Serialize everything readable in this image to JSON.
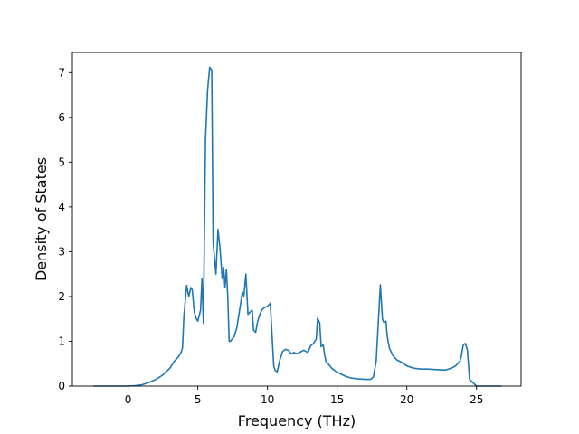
{
  "chart_data": {
    "type": "line",
    "title": "",
    "xlabel": "Frequency (THz)",
    "ylabel": "Density of States",
    "xlim": [
      -4.0,
      28.2
    ],
    "ylim": [
      0,
      7.45
    ],
    "xticks": [
      0,
      5,
      10,
      15,
      20,
      25
    ],
    "yticks": [
      0,
      1,
      2,
      3,
      4,
      5,
      6,
      7
    ],
    "grid": false,
    "legend": "none",
    "line_color": "#1f77b4",
    "series": [
      {
        "x": [
          -2.5,
          -1.0,
          0.0,
          0.5,
          1.0,
          1.5,
          2.0,
          2.5,
          3.0,
          3.3,
          3.6,
          3.8,
          3.9,
          4.0,
          4.2,
          4.35,
          4.5,
          4.6,
          4.75,
          4.9,
          5.0,
          5.2,
          5.3,
          5.4,
          5.55,
          5.7,
          5.85,
          6.0,
          6.1,
          6.3,
          6.45,
          6.6,
          6.75,
          6.85,
          6.95,
          7.05,
          7.15,
          7.25,
          7.35,
          7.45,
          7.6,
          7.8,
          8.0,
          8.2,
          8.3,
          8.45,
          8.6,
          8.75,
          8.9,
          9.0,
          9.15,
          9.3,
          9.45,
          9.6,
          9.75,
          10.0,
          10.2,
          10.45,
          10.55,
          10.7,
          10.9,
          11.1,
          11.3,
          11.5,
          11.7,
          11.9,
          12.1,
          12.3,
          12.6,
          12.9,
          13.1,
          13.3,
          13.5,
          13.6,
          13.75,
          13.85,
          14.0,
          14.1,
          14.2,
          14.4,
          14.6,
          14.9,
          15.2,
          15.6,
          16.0,
          16.5,
          17.0,
          17.4,
          17.6,
          17.8,
          17.95,
          18.1,
          18.25,
          18.35,
          18.5,
          18.6,
          18.75,
          19.0,
          19.3,
          19.7,
          20.0,
          20.5,
          21.0,
          21.5,
          22.0,
          22.5,
          22.8,
          23.2,
          23.5,
          23.8,
          23.9,
          24.05,
          24.2,
          24.35,
          24.5,
          25.0,
          26.8
        ],
        "y": [
          0.0,
          0.0,
          0.0,
          0.01,
          0.03,
          0.08,
          0.15,
          0.25,
          0.4,
          0.55,
          0.65,
          0.75,
          0.85,
          1.55,
          2.25,
          2.0,
          2.2,
          2.15,
          1.65,
          1.5,
          1.45,
          1.7,
          2.4,
          1.4,
          5.5,
          6.6,
          7.12,
          7.05,
          3.2,
          2.5,
          3.5,
          3.05,
          2.4,
          2.65,
          2.2,
          2.6,
          2.0,
          1.0,
          1.0,
          1.05,
          1.1,
          1.3,
          1.7,
          2.1,
          2.0,
          2.5,
          1.6,
          1.65,
          1.7,
          1.25,
          1.2,
          1.45,
          1.6,
          1.7,
          1.75,
          1.78,
          1.85,
          0.45,
          0.35,
          0.32,
          0.6,
          0.78,
          0.82,
          0.8,
          0.72,
          0.75,
          0.72,
          0.75,
          0.8,
          0.75,
          0.9,
          0.95,
          1.05,
          1.52,
          1.4,
          0.88,
          0.92,
          0.7,
          0.55,
          0.48,
          0.4,
          0.33,
          0.28,
          0.22,
          0.18,
          0.16,
          0.15,
          0.15,
          0.2,
          0.55,
          1.4,
          2.26,
          1.5,
          1.42,
          1.45,
          1.1,
          0.85,
          0.68,
          0.58,
          0.52,
          0.45,
          0.4,
          0.38,
          0.38,
          0.37,
          0.36,
          0.36,
          0.4,
          0.45,
          0.55,
          0.65,
          0.92,
          0.95,
          0.8,
          0.15,
          0.0,
          0.0
        ]
      }
    ]
  }
}
